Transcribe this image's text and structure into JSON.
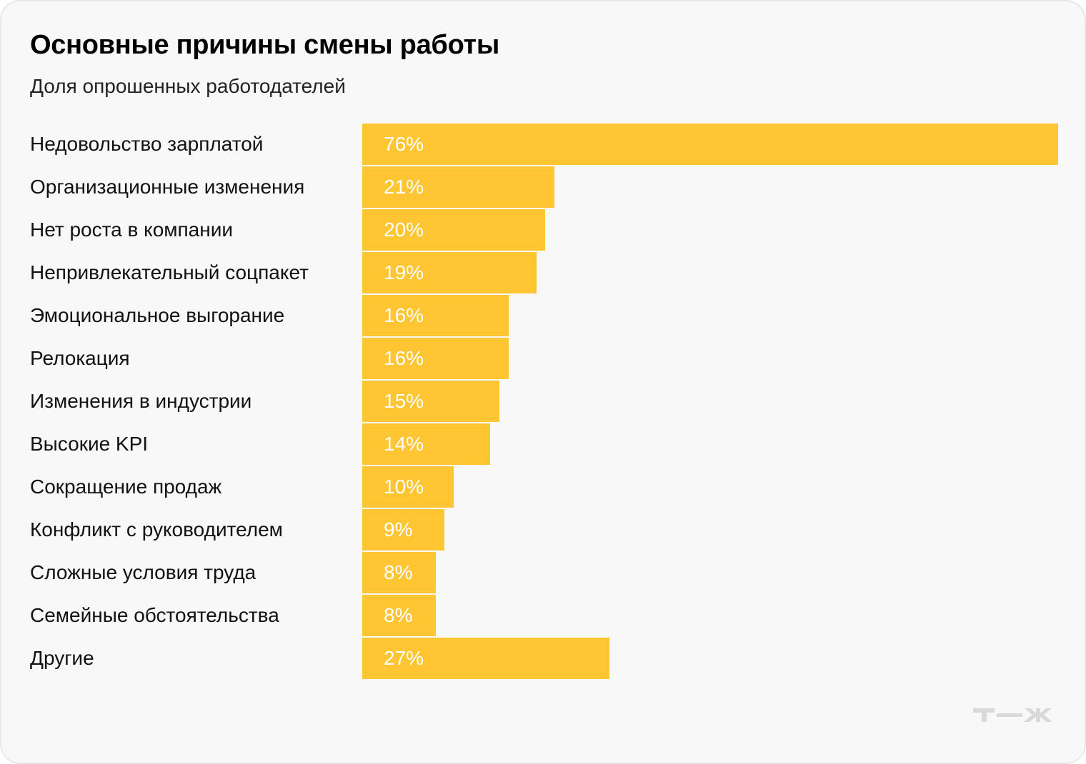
{
  "chart_data": {
    "type": "bar",
    "orientation": "horizontal",
    "title": "Основные причины смены работы",
    "subtitle": "Доля опрошенных работодателей",
    "categories": [
      "Недовольство зарплатой",
      "Организационные изменения",
      "Нет роста в компании",
      "Непривлекательный соцпакет",
      "Эмоциональное выгорание",
      "Релокация",
      "Изменения в индустрии",
      "Высокие KPI",
      "Сокращение продаж",
      "Конфликт с руководителем",
      "Сложные условия труда",
      "Семейные обстоятельства",
      "Другие"
    ],
    "values": [
      76,
      21,
      20,
      19,
      16,
      16,
      15,
      14,
      10,
      9,
      8,
      8,
      27
    ],
    "labels": [
      "76%",
      "21%",
      "20%",
      "19%",
      "16%",
      "16%",
      "15%",
      "14%",
      "10%",
      "9%",
      "8%",
      "8%",
      "27%"
    ],
    "xlim": [
      0,
      76
    ],
    "grid": false,
    "bar_color": "#ffc533"
  },
  "logo": "т—ж"
}
